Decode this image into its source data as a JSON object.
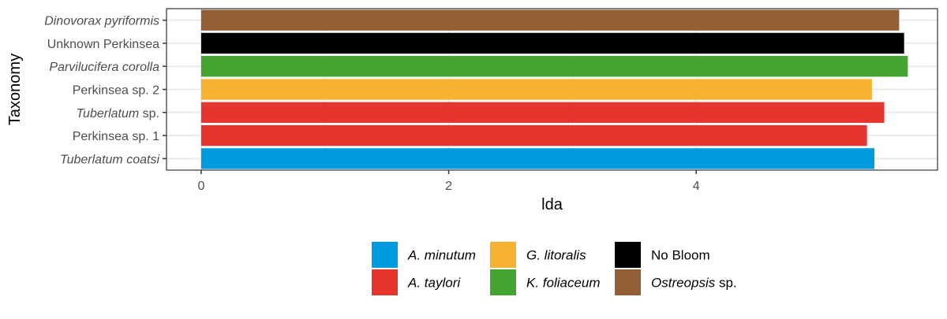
{
  "chart_data": {
    "type": "bar",
    "orientation": "horizontal",
    "xlabel": "lda",
    "ylabel": "Taxonomy",
    "xlim": [
      -0.28,
      5.95
    ],
    "xticks": [
      0,
      2,
      4
    ],
    "xtick_labels": [
      "0",
      "2",
      "4"
    ],
    "grid": true,
    "legend_position": "bottom",
    "categories": [
      {
        "label": "Dinovorax pyriformis",
        "italic": true,
        "suffix": ""
      },
      {
        "label": "Unknown Perkinsea",
        "italic": false,
        "suffix": ""
      },
      {
        "label": "Parvilucifera corolla",
        "italic": true,
        "suffix": ""
      },
      {
        "label": "Perkinsea sp. 2",
        "italic": false,
        "suffix": ""
      },
      {
        "label": "Tuberlatum",
        "italic": true,
        "suffix": " sp."
      },
      {
        "label": "Perkinsea sp. 1",
        "italic": false,
        "suffix": ""
      },
      {
        "label": "Tuberlatum coatsi",
        "italic": true,
        "suffix": ""
      }
    ],
    "values": [
      5.64,
      5.68,
      5.71,
      5.42,
      5.52,
      5.38,
      5.44
    ],
    "bar_groups": [
      "Ostreopsis",
      "No Bloom",
      "K. foliaceum",
      "G. litoralis",
      "A. taylori",
      "A. taylori",
      "A. minutum"
    ],
    "legend": [
      {
        "key": "A. minutum",
        "label": "A. minutum",
        "italic": true,
        "suffix": "",
        "color": "#009ADE"
      },
      {
        "key": "A. taylori",
        "label": "A. taylori",
        "italic": true,
        "suffix": "",
        "color": "#E5352E"
      },
      {
        "key": "G. litoralis",
        "label": "G. litoralis",
        "italic": true,
        "suffix": "",
        "color": "#F7B232"
      },
      {
        "key": "K. foliaceum",
        "label": "K. foliaceum",
        "italic": true,
        "suffix": "",
        "color": "#43A42F"
      },
      {
        "key": "No Bloom",
        "label": "No Bloom",
        "italic": false,
        "suffix": "",
        "color": "#000000"
      },
      {
        "key": "Ostreopsis",
        "label": "Ostreopsis",
        "italic": true,
        "suffix": " sp.",
        "color": "#925F37"
      }
    ]
  }
}
